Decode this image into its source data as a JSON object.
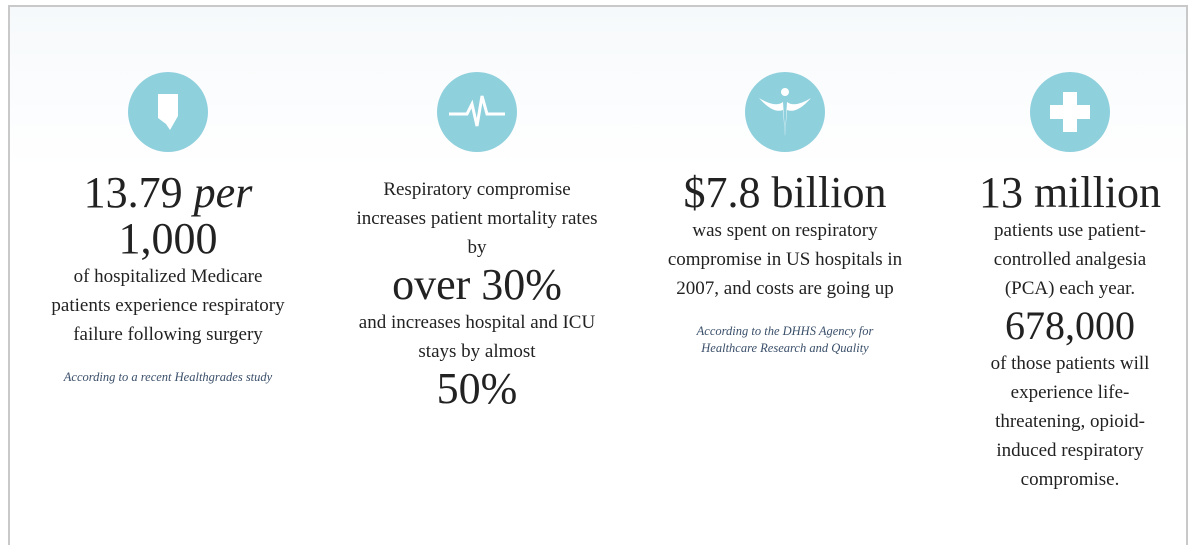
{
  "columns": [
    {
      "stat": {
        "number": "13.79",
        "unit": "per",
        "rest": "1,000"
      },
      "body": "of hospitalized Medicare patients experience respiratory failure following surgery",
      "source": "According to a recent Healthgrades study"
    },
    {
      "body": "Respiratory compromise increases patient mortality rates by",
      "stat": "over 30%",
      "body2": "and increases hospital and ICU stays by almost",
      "stat2": "50%"
    },
    {
      "stat": "$7.8 billion",
      "body": "was spent on respiratory compromise in US hospitals in 2007, and costs are going up",
      "source": "According to the DHHS Agency for Healthcare Research and Quality"
    },
    {
      "stat": "13 million",
      "body": "patients use patient-controlled analgesia (PCA) each year.",
      "stat2": "678,000",
      "body2": "of those patients will experience life-threatening, opioid-induced respiratory compromise."
    }
  ]
}
